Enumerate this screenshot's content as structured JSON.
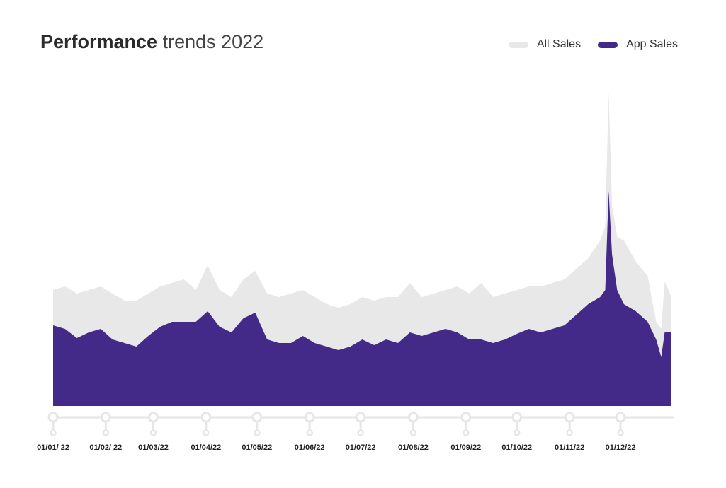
{
  "chart_data": {
    "type": "area",
    "title_bold": "Performance",
    "title_rest": " trends 2022",
    "xlabel": "",
    "ylabel": "",
    "ylim": [
      0,
      450
    ],
    "grid": false,
    "legend_placement": "top-right",
    "x": [
      "2022-01-01",
      "2022-01-08",
      "2022-01-15",
      "2022-01-22",
      "2022-01-29",
      "2022-02-05",
      "2022-02-12",
      "2022-02-19",
      "2022-02-26",
      "2022-03-05",
      "2022-03-12",
      "2022-03-19",
      "2022-03-26",
      "2022-04-02",
      "2022-04-09",
      "2022-04-16",
      "2022-04-23",
      "2022-04-30",
      "2022-05-07",
      "2022-05-14",
      "2022-05-21",
      "2022-05-28",
      "2022-06-04",
      "2022-06-11",
      "2022-06-18",
      "2022-06-25",
      "2022-07-02",
      "2022-07-09",
      "2022-07-16",
      "2022-07-23",
      "2022-07-30",
      "2022-08-06",
      "2022-08-13",
      "2022-08-20",
      "2022-08-27",
      "2022-09-03",
      "2022-09-10",
      "2022-09-17",
      "2022-09-24",
      "2022-10-01",
      "2022-10-08",
      "2022-10-15",
      "2022-10-22",
      "2022-10-29",
      "2022-11-05",
      "2022-11-12",
      "2022-11-19",
      "2022-11-22",
      "2022-11-24",
      "2022-11-26",
      "2022-11-29",
      "2022-12-03",
      "2022-12-10",
      "2022-12-17",
      "2022-12-22",
      "2022-12-25",
      "2022-12-27",
      "2022-12-31"
    ],
    "series": [
      {
        "name": "All Sales",
        "color": "#e8e8e8",
        "values": [
          164,
          169,
          159,
          164,
          169,
          159,
          149,
          149,
          159,
          169,
          174,
          179,
          164,
          199,
          164,
          154,
          179,
          191,
          159,
          154,
          159,
          164,
          154,
          144,
          139,
          144,
          154,
          149,
          154,
          154,
          174,
          154,
          159,
          164,
          169,
          159,
          174,
          154,
          159,
          164,
          169,
          169,
          174,
          179,
          194,
          209,
          234,
          254,
          444,
          284,
          239,
          234,
          204,
          184,
          119,
          109,
          176,
          154
        ]
      },
      {
        "name": "App Sales",
        "color": "#432a88",
        "values": [
          114,
          109,
          96,
          104,
          109,
          94,
          89,
          84,
          99,
          112,
          119,
          119,
          119,
          134,
          112,
          104,
          124,
          132,
          94,
          89,
          89,
          99,
          89,
          84,
          79,
          84,
          94,
          86,
          94,
          89,
          104,
          99,
          104,
          109,
          104,
          94,
          94,
          89,
          94,
          102,
          109,
          104,
          109,
          114,
          129,
          144,
          154,
          164,
          304,
          214,
          164,
          144,
          134,
          119,
          94,
          69,
          104,
          104
        ]
      }
    ],
    "tick_dates": [
      "2022-01-01",
      "2022-02-01",
      "2022-03-01",
      "2022-04-01",
      "2022-05-01",
      "2022-06-01",
      "2022-07-01",
      "2022-08-01",
      "2022-09-01",
      "2022-10-01",
      "2022-11-01",
      "2022-12-01"
    ],
    "tick_labels": [
      "01/01/ 22",
      "01/02/ 22",
      "01/03/22",
      "01/04/22",
      "01/05/22",
      "01/06/22",
      "01/07/22",
      "01/08/22",
      "01/09/22",
      "01/10/22",
      "01/11/22",
      "01/12/22"
    ],
    "axis_color": "#e6e6e6"
  }
}
